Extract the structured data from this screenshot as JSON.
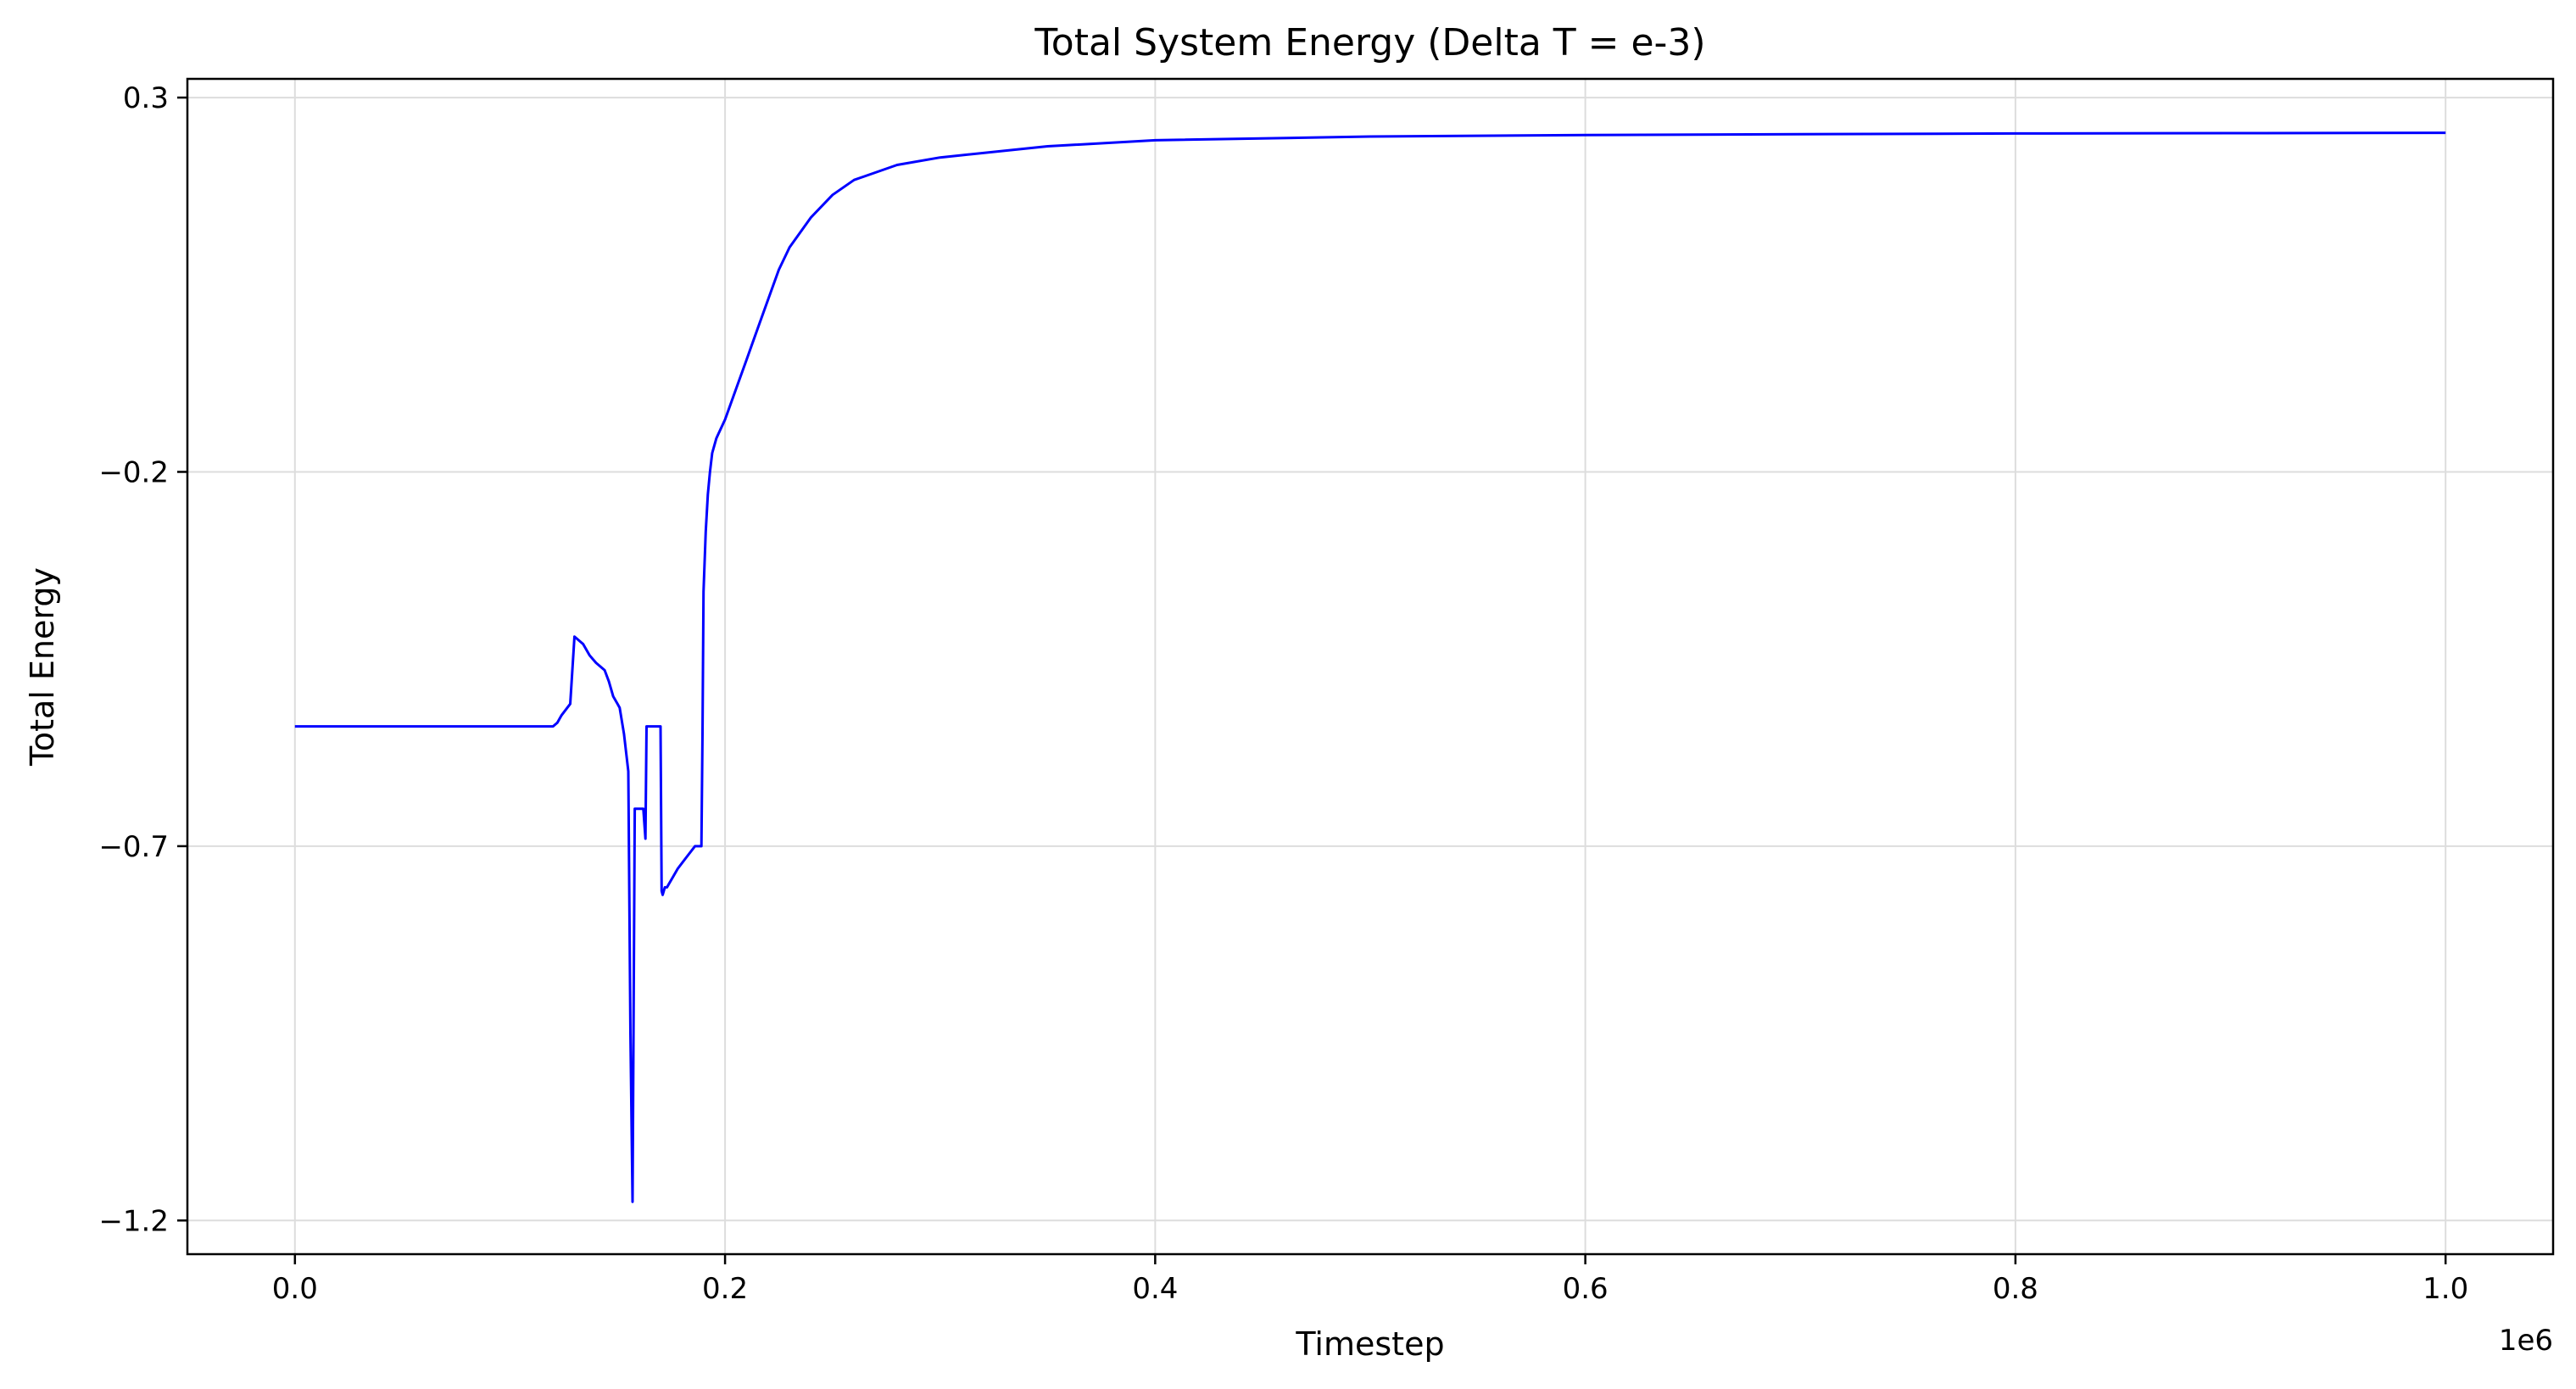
{
  "chart_data": {
    "type": "line",
    "title": "Total System Energy (Delta T = e-3)",
    "xlabel": "Timestep",
    "ylabel": "Total Energy",
    "x_offset_label": "1e6",
    "xlim": [
      -0.05,
      1.05
    ],
    "ylim": [
      -1.245,
      0.325
    ],
    "x_ticks": [
      0.0,
      0.2,
      0.4,
      0.6,
      0.8,
      1.0
    ],
    "x_tick_labels": [
      "0.0",
      "0.2",
      "0.4",
      "0.6",
      "0.8",
      "1.0"
    ],
    "y_ticks": [
      0.3,
      -0.2,
      -0.7,
      -1.2
    ],
    "y_tick_labels": [
      "0.3",
      "−0.2",
      "−0.7",
      "−1.2"
    ],
    "grid": true,
    "line_color": "#0000ff",
    "series": [
      {
        "x": [
          0.0,
          0.12,
          0.122,
          0.124,
          0.128,
          0.13,
          0.134,
          0.137,
          0.14,
          0.144,
          0.146,
          0.148,
          0.15,
          0.151,
          0.153,
          0.155,
          0.156,
          0.157,
          0.158,
          0.1585,
          0.159,
          0.162,
          0.163,
          0.1635,
          0.165,
          0.17,
          0.1705,
          0.171,
          0.172,
          0.173,
          0.174,
          0.176,
          0.178,
          0.182,
          0.186,
          0.189,
          0.1895,
          0.19,
          0.191,
          0.192,
          0.193,
          0.194,
          0.196,
          0.2,
          0.205,
          0.21,
          0.215,
          0.22,
          0.225,
          0.23,
          0.24,
          0.25,
          0.26,
          0.28,
          0.3,
          0.35,
          0.4,
          0.5,
          0.6,
          0.7,
          0.8,
          0.9,
          1.0
        ],
        "y": [
          -0.54,
          -0.54,
          -0.535,
          -0.525,
          -0.51,
          -0.42,
          -0.43,
          -0.445,
          -0.455,
          -0.465,
          -0.48,
          -0.5,
          -0.51,
          -0.515,
          -0.55,
          -0.6,
          -0.95,
          -1.175,
          -0.65,
          -0.65,
          -0.65,
          -0.65,
          -0.69,
          -0.54,
          -0.54,
          -0.54,
          -0.76,
          -0.765,
          -0.755,
          -0.755,
          -0.75,
          -0.74,
          -0.73,
          -0.715,
          -0.7,
          -0.7,
          -0.55,
          -0.36,
          -0.28,
          -0.23,
          -0.2,
          -0.175,
          -0.155,
          -0.13,
          -0.09,
          -0.05,
          -0.01,
          0.03,
          0.07,
          0.1,
          0.14,
          0.17,
          0.19,
          0.21,
          0.22,
          0.235,
          0.243,
          0.248,
          0.25,
          0.251,
          0.252,
          0.2525,
          0.253
        ]
      }
    ]
  }
}
